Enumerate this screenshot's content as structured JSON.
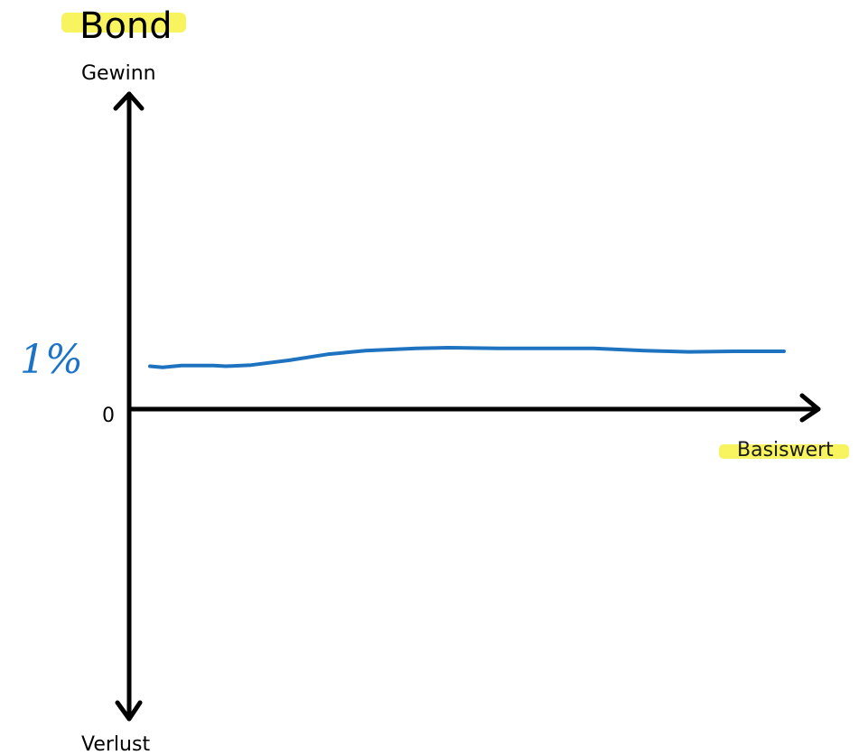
{
  "chart_data": {
    "type": "line",
    "title": "Bond",
    "ylabel_top": "Gewinn",
    "ylabel_bottom": "Verlust",
    "xlabel": "Basiswert",
    "origin_label": "0",
    "annotation": "1%",
    "highlight_color": "#f4f02a",
    "series": [
      {
        "color": "#1e73c0",
        "x": [
          0,
          0.02,
          0.05,
          0.1,
          0.12,
          0.16,
          0.22,
          0.28,
          0.34,
          0.42,
          0.47,
          0.55,
          0.62,
          0.7,
          0.78,
          0.85,
          0.92,
          1.0
        ],
        "y": [
          0.72,
          0.7,
          0.73,
          0.73,
          0.72,
          0.74,
          0.82,
          0.92,
          0.98,
          1.02,
          1.03,
          1.02,
          1.02,
          1.02,
          0.98,
          0.96,
          0.97,
          0.97
        ]
      }
    ],
    "xlim": [
      0,
      1
    ],
    "ylim": [
      -5,
      5
    ]
  }
}
